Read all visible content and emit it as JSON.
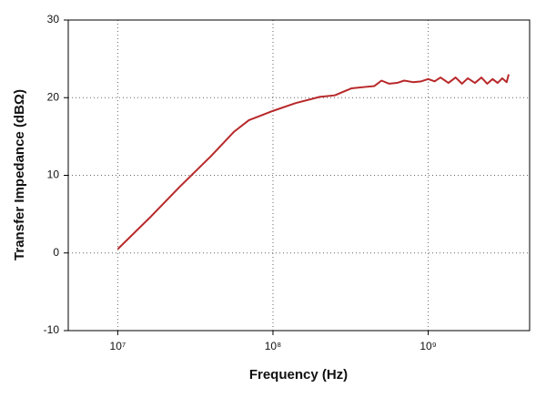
{
  "chart_data": {
    "type": "line",
    "x_label": "Frequency (Hz)",
    "y_label": "Transfer Impedance (dBΩ)",
    "x_log": true,
    "grid": true,
    "xlim": [
      4800000,
      4500000000
    ],
    "ylim": [
      -10,
      30
    ],
    "xticks": [
      {
        "value": 10000000,
        "label": "10⁷"
      },
      {
        "value": 100000000,
        "label": "10⁸"
      },
      {
        "value": 1000000000,
        "label": "10⁹"
      }
    ],
    "yticks": [
      -10,
      0,
      10,
      20,
      30
    ],
    "series": [
      {
        "color": "#b8282a",
        "x": [
          10000000,
          16000000,
          25000000,
          40000000,
          56000000,
          70000000,
          100000000,
          140000000,
          200000000,
          250000000,
          320000000,
          400000000,
          450000000,
          500000000,
          560000000,
          630000000,
          700000000,
          800000000,
          900000000,
          1000000000,
          1100000000,
          1200000000,
          1350000000,
          1500000000,
          1650000000,
          1800000000,
          2000000000,
          2200000000,
          2400000000,
          2600000000,
          2800000000,
          3000000000,
          3200000000,
          3300000000
        ],
        "values": [
          0.5,
          4.5,
          8.5,
          12.5,
          15.6,
          17.1,
          18.3,
          19.3,
          20.1,
          20.3,
          21.2,
          21.4,
          21.5,
          22.2,
          21.8,
          21.9,
          22.2,
          22.0,
          22.1,
          22.4,
          22.1,
          22.6,
          21.9,
          22.6,
          21.8,
          22.5,
          21.9,
          22.6,
          21.8,
          22.4,
          21.9,
          22.5,
          22.0,
          23.0
        ]
      }
    ]
  }
}
